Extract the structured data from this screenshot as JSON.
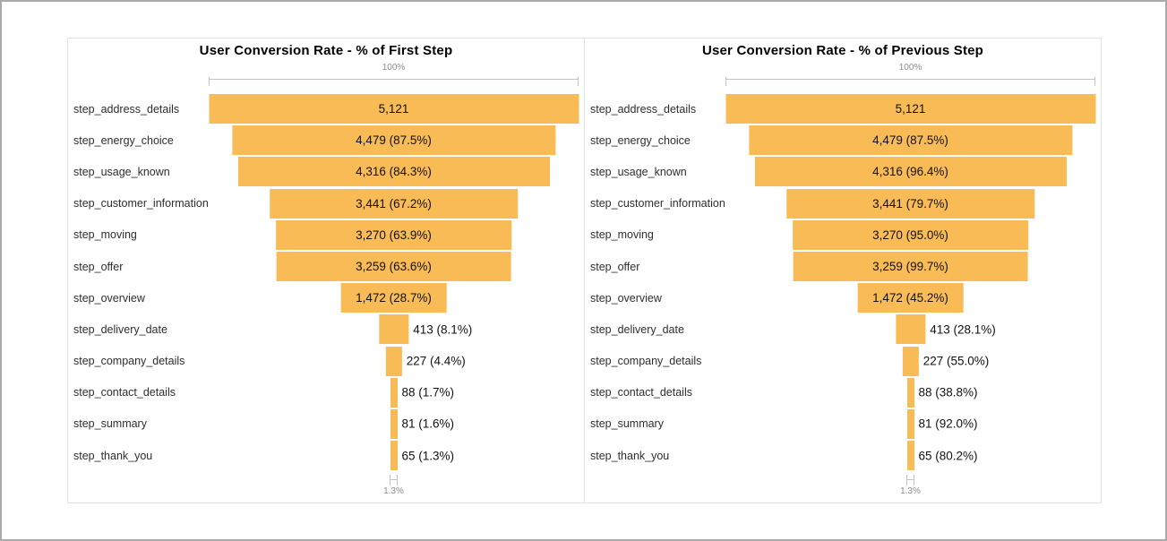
{
  "page": {
    "background": "#ffffff",
    "frame_border_color": "#aaaaaa"
  },
  "colors": {
    "bar_fill": "#F8BB55",
    "axis_line": "#c3c3c3",
    "axis_text": "#8c8c8c",
    "title_text": "#000000",
    "step_label_text": "#2e2e2e",
    "value_text": "#111111",
    "panel_border": "#e3e3e3"
  },
  "chart_data": [
    {
      "type": "bar",
      "subtype": "horizontal-centered-funnel",
      "title": "User Conversion Rate - % of First Step",
      "top_axis_label": "100%",
      "bottom_axis_label": "1.3%",
      "max_value": 5121,
      "xlim_pct": [
        0,
        100
      ],
      "steps": [
        {
          "label": "step_address_details",
          "value": 5121,
          "pct": 100.0,
          "value_label": "5,121"
        },
        {
          "label": "step_energy_choice",
          "value": 4479,
          "pct": 87.5,
          "value_label": "4,479 (87.5%)"
        },
        {
          "label": "step_usage_known",
          "value": 4316,
          "pct": 84.3,
          "value_label": "4,316 (84.3%)"
        },
        {
          "label": "step_customer_information",
          "value": 3441,
          "pct": 67.2,
          "value_label": "3,441 (67.2%)"
        },
        {
          "label": "step_moving",
          "value": 3270,
          "pct": 63.9,
          "value_label": "3,270 (63.9%)"
        },
        {
          "label": "step_offer",
          "value": 3259,
          "pct": 63.6,
          "value_label": "3,259 (63.6%)"
        },
        {
          "label": "step_overview",
          "value": 1472,
          "pct": 28.7,
          "value_label": "1,472 (28.7%)"
        },
        {
          "label": "step_delivery_date",
          "value": 413,
          "pct": 8.1,
          "value_label": "413 (8.1%)"
        },
        {
          "label": "step_company_details",
          "value": 227,
          "pct": 4.4,
          "value_label": "227 (4.4%)"
        },
        {
          "label": "step_contact_details",
          "value": 88,
          "pct": 1.7,
          "value_label": "88 (1.7%)"
        },
        {
          "label": "step_summary",
          "value": 81,
          "pct": 1.6,
          "value_label": "81 (1.6%)"
        },
        {
          "label": "step_thank_you",
          "value": 65,
          "pct": 1.3,
          "value_label": "65 (1.3%)"
        }
      ]
    },
    {
      "type": "bar",
      "subtype": "horizontal-centered-funnel",
      "title": "User Conversion Rate - % of Previous Step",
      "top_axis_label": "100%",
      "bottom_axis_label": "1.3%",
      "max_value": 5121,
      "xlim_pct": [
        0,
        100
      ],
      "steps": [
        {
          "label": "step_address_details",
          "value": 5121,
          "pct": 100.0,
          "value_label": "5,121"
        },
        {
          "label": "step_energy_choice",
          "value": 4479,
          "pct": 87.5,
          "value_label": "4,479 (87.5%)"
        },
        {
          "label": "step_usage_known",
          "value": 4316,
          "pct": 96.4,
          "value_label": "4,316 (96.4%)"
        },
        {
          "label": "step_customer_information",
          "value": 3441,
          "pct": 79.7,
          "value_label": "3,441 (79.7%)"
        },
        {
          "label": "step_moving",
          "value": 3270,
          "pct": 95.0,
          "value_label": "3,270 (95.0%)"
        },
        {
          "label": "step_offer",
          "value": 3259,
          "pct": 99.7,
          "value_label": "3,259 (99.7%)"
        },
        {
          "label": "step_overview",
          "value": 1472,
          "pct": 45.2,
          "value_label": "1,472 (45.2%)"
        },
        {
          "label": "step_delivery_date",
          "value": 413,
          "pct": 28.1,
          "value_label": "413 (28.1%)"
        },
        {
          "label": "step_company_details",
          "value": 227,
          "pct": 55.0,
          "value_label": "227 (55.0%)"
        },
        {
          "label": "step_contact_details",
          "value": 88,
          "pct": 38.8,
          "value_label": "88 (38.8%)"
        },
        {
          "label": "step_summary",
          "value": 81,
          "pct": 92.0,
          "value_label": "81 (92.0%)"
        },
        {
          "label": "step_thank_you",
          "value": 65,
          "pct": 80.2,
          "value_label": "65 (80.2%)"
        }
      ]
    }
  ]
}
